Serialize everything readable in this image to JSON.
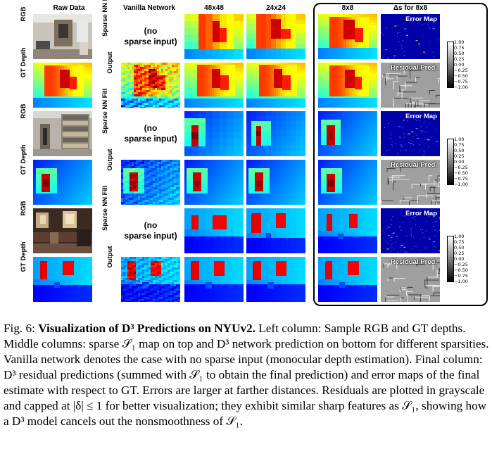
{
  "figure": {
    "column_headers": {
      "raw": "Raw Data",
      "vanilla": "Vanilla Network",
      "c48": "48x48",
      "c24": "24x24",
      "c8": "8x8",
      "delta": "Δs for 8x8"
    },
    "row_labels": {
      "rgb": "RGB",
      "gt": "GT Depth",
      "sparse": "Sparse NN Fill",
      "output": "Output"
    },
    "no_sparse_text": "(no sparse input)",
    "panel_labels": {
      "error": "Error Map",
      "residual": "Residual Pred."
    },
    "colorbar_ticks": [
      "1.00",
      "0.75",
      "0.50",
      "0.25",
      "0.00",
      "−0.25",
      "−0.50",
      "−0.75",
      "−1.00"
    ]
  },
  "caption": {
    "label": "Fig. 6:",
    "title": "Visualization of D³ Predictions on NYUv2.",
    "body": " Left column: Sample RGB and GT depths. Middle columns: sparse 𝒮₁ map on top and D³ network prediction on bottom for different sparsities. Vanilla network denotes the case with no sparse input (monocular depth estimation). Final column: D³ residual predictions (summed with 𝒮₁ to obtain the final prediction) and error maps of the final estimate with respect to GT. Errors are larger at farther distances. Residuals are plotted in grayscale and capped at |δ| ≤ 1 for better visualization; they exhibit similar sharp features as 𝒮₁, showing how a D³ model cancels out the nonsmoothness of 𝒮₁."
  }
}
